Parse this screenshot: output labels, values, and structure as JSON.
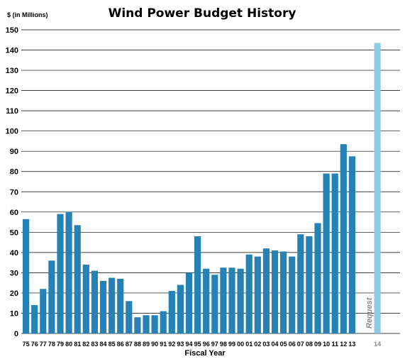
{
  "chart_data": {
    "type": "bar",
    "title": "Wind Power Budget History",
    "ylabel": "$ (in Millions)",
    "xlabel": "Fiscal Year",
    "ylim": [
      0,
      150
    ],
    "yticks": [
      0,
      10,
      20,
      30,
      40,
      50,
      60,
      70,
      80,
      90,
      100,
      110,
      120,
      130,
      140,
      150
    ],
    "grid": true,
    "categories": [
      "75",
      "76",
      "77",
      "78",
      "79",
      "80",
      "81",
      "82",
      "83",
      "84",
      "85",
      "86",
      "87",
      "88",
      "89",
      "90",
      "91",
      "92",
      "93",
      "94",
      "95",
      "96",
      "97",
      "98",
      "99",
      "00",
      "01",
      "02",
      "03",
      "04",
      "05",
      "06",
      "07",
      "08",
      "09",
      "10",
      "11",
      "12",
      "13",
      "14"
    ],
    "values": [
      56.5,
      14,
      22,
      36,
      59,
      60,
      53.5,
      34,
      31,
      26,
      27.5,
      27,
      16,
      8,
      9,
      9,
      11,
      21,
      24,
      30,
      48,
      32,
      29,
      32.5,
      32.5,
      32,
      39,
      38,
      42,
      41,
      40.5,
      38,
      49,
      48,
      54.5,
      79,
      79,
      93.5,
      87.5,
      143.5
    ],
    "request_category": "14",
    "annotation": "Request",
    "colors": {
      "bar": "#2681b5",
      "request_bar": "#8ecae6",
      "request_label": "#8a8a8a"
    }
  }
}
